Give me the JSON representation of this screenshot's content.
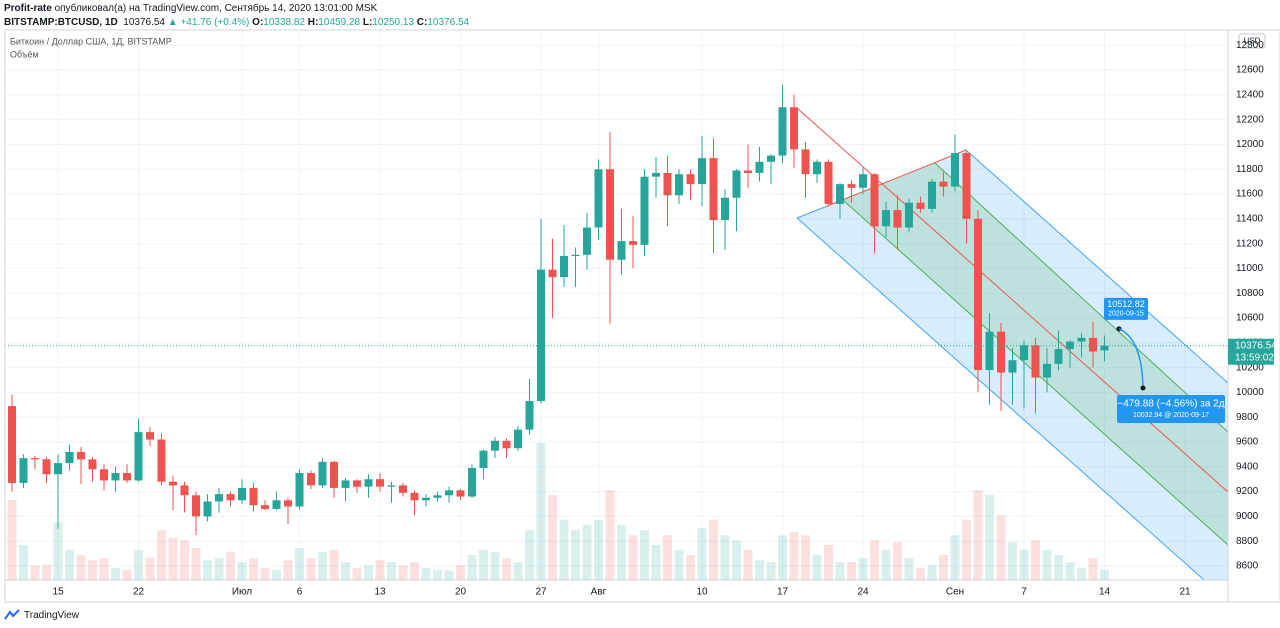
{
  "header": {
    "author": "Profit-rate",
    "published": "опубликовал(а) на TradingView.com, Сентябрь 14, 2020 13:01:00 MSK",
    "symbol": "BITSTAMP:BTCUSD, 1D",
    "last": 10376.54,
    "change": "+41.76 (+0.4%)",
    "o_label": "O:",
    "open": 10338.82,
    "h_label": "H:",
    "high": 10459.28,
    "l_label": "L:",
    "low": 10250.13,
    "c_label": "C:",
    "close": 10376.54
  },
  "chart_data": {
    "type": "candlestick",
    "title": "Биткоин / Доллар США, 1Д, BITSTAMP",
    "volume_label": "Объём",
    "currency": "USD",
    "categories": [
      null,
      null,
      null,
      null,
      "15",
      null,
      null,
      null,
      null,
      null,
      null,
      "22",
      null,
      null,
      null,
      null,
      null,
      null,
      null,
      null,
      "Июл",
      null,
      null,
      null,
      null,
      "6",
      null,
      null,
      null,
      null,
      null,
      null,
      "13",
      null,
      null,
      null,
      null,
      null,
      null,
      "20",
      null,
      null,
      null,
      null,
      null,
      null,
      "27",
      null,
      null,
      null,
      null,
      "Авг",
      null,
      null,
      null,
      null,
      null,
      null,
      null,
      null,
      "10",
      null,
      null,
      null,
      null,
      null,
      null,
      "17",
      null,
      null,
      null,
      null,
      null,
      null,
      "24",
      null,
      null,
      null,
      null,
      null,
      null,
      null,
      "Сен",
      null,
      null,
      null,
      null,
      null,
      "7",
      null,
      null,
      null,
      null,
      null,
      null,
      "14",
      null,
      null,
      null,
      null,
      null,
      null,
      "21",
      null,
      null,
      null
    ],
    "open": [
      9890,
      9270,
      9470,
      9460,
      9340,
      9430,
      9520,
      9460,
      9380,
      9290,
      9350,
      9290,
      9680,
      9620,
      9280,
      9250,
      9170,
      9000,
      9120,
      9180,
      9130,
      9230,
      9090,
      9060,
      9130,
      9080,
      9350,
      9250,
      9440,
      9230,
      9290,
      9240,
      9300,
      9240,
      9250,
      9190,
      9130,
      9150,
      9170,
      9210,
      9160,
      9390,
      9530,
      9610,
      9550,
      9700,
      9930,
      10990,
      10930,
      11100,
      11110,
      11330,
      11800,
      11070,
      11220,
      11190,
      11740,
      11770,
      11590,
      11760,
      11680,
      11890,
      11390,
      11570,
      11790,
      11770,
      11860,
      11910,
      12300,
      11960,
      11760,
      11860,
      11520,
      11680,
      11650,
      11760,
      11340,
      11470,
      11330,
      11530,
      11480,
      11700,
      11660,
      11930,
      11400,
      10180,
      10490,
      10160,
      10260,
      10380,
      10120,
      10230,
      10350,
      10410,
      10440,
      10338.82,
      null,
      null,
      null,
      null,
      null,
      null,
      null,
      null,
      null,
      null
    ],
    "high": [
      9980,
      9500,
      9490,
      9480,
      9500,
      9580,
      9560,
      9480,
      9420,
      9400,
      9420,
      9790,
      9720,
      9670,
      9330,
      9280,
      9200,
      9180,
      9230,
      9200,
      9300,
      9270,
      9130,
      9200,
      9150,
      9380,
      9370,
      9470,
      9450,
      9310,
      9300,
      9340,
      9350,
      9280,
      9270,
      9210,
      9180,
      9200,
      9240,
      9220,
      9420,
      9540,
      9640,
      9630,
      9730,
      10110,
      11400,
      11240,
      11350,
      11170,
      11450,
      11880,
      12100,
      11480,
      11420,
      11800,
      11900,
      11910,
      11800,
      11800,
      12070,
      12050,
      11640,
      11800,
      12000,
      11980,
      11920,
      12480,
      12400,
      12020,
      11880,
      11880,
      11690,
      11710,
      11820,
      11770,
      11540,
      11590,
      11560,
      11580,
      11720,
      11780,
      12080,
      11950,
      11470,
      10640,
      10560,
      10360,
      10420,
      10440,
      10360,
      10500,
      10420,
      10480,
      10570,
      10459.28,
      null,
      null,
      null,
      null,
      null,
      null,
      null,
      null,
      null,
      null
    ],
    "low": [
      9200,
      9230,
      9380,
      9270,
      8900,
      9370,
      9260,
      9280,
      9210,
      9200,
      9270,
      9280,
      9570,
      9250,
      9050,
      9030,
      8850,
      8960,
      9030,
      9080,
      9100,
      9040,
      9050,
      9050,
      8940,
      9060,
      9220,
      9230,
      9150,
      9120,
      9190,
      9150,
      9200,
      9110,
      9160,
      9010,
      9080,
      9120,
      9110,
      9130,
      9150,
      9300,
      9470,
      9470,
      9530,
      9660,
      9910,
      10600,
      10850,
      10850,
      10990,
      11230,
      10550,
      10950,
      11000,
      11100,
      11570,
      11340,
      11520,
      11550,
      11500,
      11120,
      11150,
      11300,
      11650,
      11700,
      11680,
      11850,
      11810,
      11570,
      11690,
      11500,
      11400,
      11530,
      11600,
      11120,
      11250,
      11150,
      11290,
      11450,
      11450,
      11580,
      11620,
      11200,
      10000,
      9900,
      9850,
      9900,
      9870,
      9830,
      10000,
      10180,
      10200,
      10280,
      10200,
      10250.13,
      null,
      null,
      null,
      null,
      null,
      null,
      null,
      null,
      null,
      null
    ],
    "close": [
      9270,
      9470,
      9460,
      9340,
      9430,
      9520,
      9460,
      9380,
      9290,
      9350,
      9290,
      9680,
      9620,
      9280,
      9250,
      9170,
      9000,
      9120,
      9180,
      9130,
      9230,
      9090,
      9060,
      9130,
      9080,
      9350,
      9250,
      9440,
      9230,
      9290,
      9240,
      9300,
      9240,
      9250,
      9190,
      9130,
      9150,
      9170,
      9210,
      9160,
      9390,
      9530,
      9610,
      9550,
      9700,
      9930,
      10990,
      10930,
      11100,
      11110,
      11330,
      11800,
      11070,
      11220,
      11190,
      11740,
      11770,
      11590,
      11760,
      11680,
      11890,
      11390,
      11570,
      11790,
      11770,
      11860,
      11910,
      12300,
      11960,
      11760,
      11860,
      11520,
      11680,
      11650,
      11760,
      11340,
      11470,
      11330,
      11530,
      11480,
      11700,
      11660,
      11930,
      11400,
      10180,
      10490,
      10160,
      10260,
      10380,
      10120,
      10230,
      10350,
      10410,
      10440,
      10330,
      10376.54,
      null,
      null,
      null,
      null,
      null,
      null,
      null,
      null,
      null,
      null
    ],
    "volume": [
      12500,
      5500,
      2300,
      2400,
      9000,
      4700,
      3900,
      3100,
      3400,
      1900,
      1600,
      4700,
      3500,
      7800,
      6600,
      6200,
      5000,
      3100,
      3400,
      4400,
      2800,
      3400,
      1900,
      1600,
      3100,
      5000,
      3400,
      4400,
      4700,
      2800,
      1900,
      2300,
      3100,
      2800,
      2300,
      2800,
      1900,
      1600,
      1500,
      2300,
      3900,
      4700,
      4400,
      3400,
      2800,
      7800,
      21400,
      13300,
      9400,
      7800,
      8600,
      9400,
      14000,
      8600,
      7000,
      7800,
      5500,
      7000,
      4700,
      3900,
      8100,
      9400,
      7000,
      6200,
      4700,
      3100,
      2800,
      7000,
      7500,
      7000,
      3900,
      5500,
      2800,
      2800,
      3400,
      6200,
      4700,
      5900,
      3400,
      1900,
      2300,
      3900,
      7000,
      9400,
      14000,
      13300,
      10100,
      5900,
      4700,
      6200,
      4700,
      3900,
      2800,
      1900,
      3400,
      1600,
      null,
      null,
      null,
      null,
      null,
      null,
      null,
      null,
      null,
      null
    ],
    "volume_lim": [
      0,
      25000
    ],
    "up_color": "#26a69a",
    "down_color": "#ef5350",
    "ylim": [
      8487,
      12923
    ],
    "yticks": [
      8600,
      8800,
      9000,
      9200,
      9400,
      9600,
      9800,
      10000,
      10200,
      10400,
      10600,
      10800,
      11000,
      11200,
      11400,
      11600,
      11800,
      12000,
      12200,
      12400,
      12600,
      12800
    ],
    "grid": true,
    "last_price": 10376.54,
    "countdown": "13:59:02",
    "forecast": {
      "start_value": 10512.82,
      "start_date": "2020-09-15",
      "change": "−479.88 (−4.56%) за 2д",
      "end": "10032.94 @ 2020-09-17"
    }
  },
  "footer": {
    "brand": "TradingView"
  }
}
